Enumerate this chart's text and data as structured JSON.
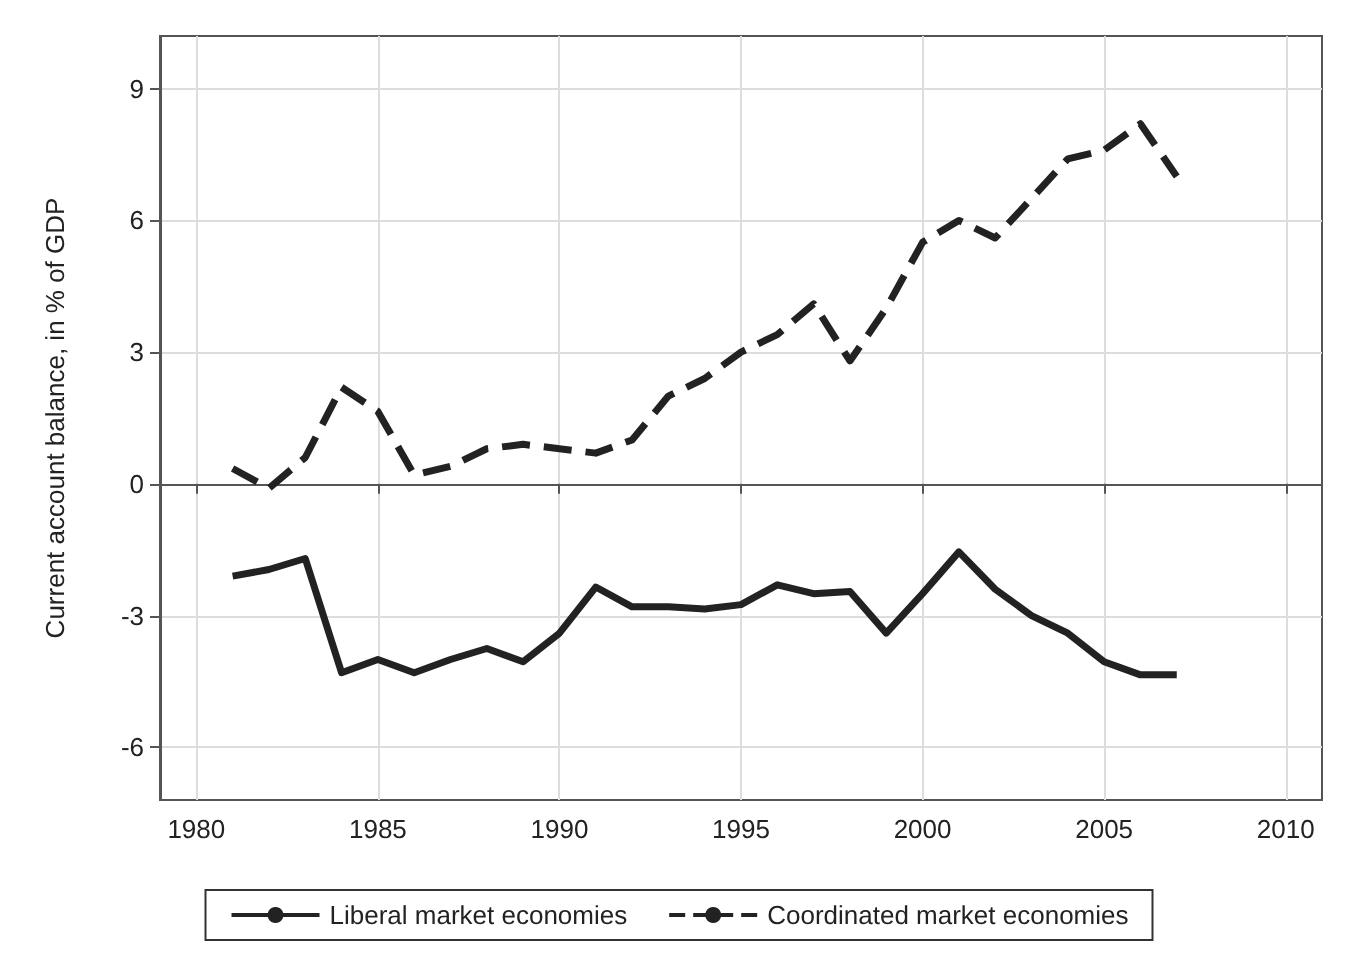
{
  "chart_data": {
    "type": "line",
    "ylabel": "Current account balance, in % of GDP",
    "x": [
      1981,
      1982,
      1983,
      1984,
      1985,
      1986,
      1987,
      1988,
      1989,
      1990,
      1991,
      1992,
      1993,
      1994,
      1995,
      1996,
      1997,
      1998,
      1999,
      2000,
      2001,
      2002,
      2003,
      2004,
      2005,
      2006,
      2007
    ],
    "series": [
      {
        "name": "Liberal market economies",
        "color": "#222222",
        "line_style": "solid",
        "values": [
          -2.1,
          -1.95,
          -1.7,
          -4.3,
          -4.0,
          -4.3,
          -4.0,
          -3.75,
          -4.05,
          -3.4,
          -2.35,
          -2.8,
          -2.8,
          -2.85,
          -2.75,
          -2.3,
          -2.5,
          -2.45,
          -3.4,
          -2.5,
          -1.55,
          -2.4,
          -3.0,
          -3.4,
          -4.05,
          -4.35,
          -4.35
        ]
      },
      {
        "name": "Coordinated market economies",
        "color": "#222222",
        "line_style": "dashed",
        "values": [
          0.35,
          -0.1,
          0.6,
          2.2,
          1.65,
          0.2,
          0.4,
          0.8,
          0.9,
          0.8,
          0.7,
          1.0,
          2.0,
          2.4,
          3.0,
          3.4,
          4.1,
          2.8,
          4.0,
          5.5,
          6.0,
          5.6,
          6.5,
          7.4,
          7.6,
          8.2,
          7.0
        ]
      }
    ],
    "xlim": [
      1979,
      2011
    ],
    "xticks": [
      1980,
      1985,
      1990,
      1995,
      2000,
      2005,
      2010
    ],
    "ylim": [
      -7.2,
      10.2
    ],
    "yticks": [
      -6,
      -3,
      0,
      3,
      6,
      9
    ],
    "grid": true,
    "legend": "bottom",
    "marker": "none"
  }
}
